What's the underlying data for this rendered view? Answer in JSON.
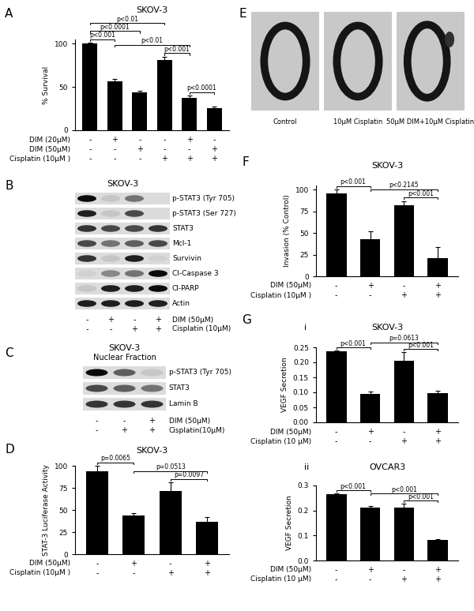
{
  "panel_labels": [
    "A",
    "B",
    "C",
    "D",
    "E",
    "F",
    "G"
  ],
  "chart_data": [
    {
      "type": "bar",
      "title": "SKOV-3",
      "y_label": "% Survival",
      "categories": [
        null,
        null,
        null,
        null,
        null,
        null
      ],
      "values": [
        100,
        57,
        44,
        81,
        37,
        26
      ],
      "errors": [
        1,
        2,
        2,
        4,
        3,
        1
      ],
      "color": "#000000",
      "ylim": [
        0,
        105
      ],
      "yticks": [
        0,
        50,
        100
      ],
      "treatments": [
        {
          "label": "DIM (20μM)",
          "marks": [
            "-",
            "+",
            "-",
            "-",
            "+",
            "-"
          ]
        },
        {
          "label": "DIM (50μM)",
          "marks": [
            "-",
            "-",
            "+",
            "-",
            "-",
            "+"
          ]
        },
        {
          "label": "Cisplatin (10μM )",
          "marks": [
            "-",
            "-",
            "-",
            "+",
            "+",
            "+"
          ]
        }
      ],
      "annotations": [
        {
          "text": "p<0.001",
          "from": 0,
          "to": 1
        },
        {
          "text": "p<0.0001",
          "from": 0,
          "to": 2
        },
        {
          "text": "p<0.001",
          "from": 3,
          "to": 4
        },
        {
          "text": "p<0.0001",
          "from": 4,
          "to": 5
        },
        {
          "text": "p<0.01",
          "from": 1,
          "to": 4
        },
        {
          "text": "p<0.01",
          "from": 0,
          "to": 3
        }
      ]
    },
    {
      "type": "bar",
      "title": "SKOV-3",
      "y_label": "STAT-3 Luciferase Activity",
      "categories": [
        null,
        null,
        null,
        null
      ],
      "values": [
        94,
        44,
        71,
        37
      ],
      "errors": [
        6,
        2,
        10,
        5
      ],
      "color": "#000000",
      "ylim": [
        0,
        100
      ],
      "yticks": [
        0,
        25,
        50,
        75,
        100
      ],
      "treatments": [
        {
          "label": "DIM (50μM)",
          "marks": [
            "-",
            "+",
            "-",
            "+"
          ]
        },
        {
          "label": "Cisplatin (10μM )",
          "marks": [
            "-",
            "-",
            "+",
            "+"
          ]
        }
      ],
      "annotations": [
        {
          "text": "p=0.0065",
          "from": 0,
          "to": 1
        },
        {
          "text": "p=0.0097",
          "from": 2,
          "to": 3
        },
        {
          "text": "p=0.0513",
          "from": 1,
          "to": 3
        }
      ]
    },
    {
      "type": "bar",
      "title": "SKOV-3",
      "y_label": "Invasion (% Control)",
      "categories": [
        null,
        null,
        null,
        null
      ],
      "values": [
        96,
        43,
        82,
        21
      ],
      "errors": [
        4,
        9,
        5,
        13
      ],
      "color": "#000000",
      "ylim": [
        0,
        105
      ],
      "yticks": [
        0,
        25,
        50,
        75,
        100
      ],
      "treatments": [
        {
          "label": "DIM (50μM)",
          "marks": [
            "-",
            "+",
            "-",
            "+"
          ]
        },
        {
          "label": "Cisplatin (10μM )",
          "marks": [
            "-",
            "-",
            "+",
            "+"
          ]
        }
      ],
      "annotations": [
        {
          "text": "p<0.001",
          "from": 0,
          "to": 1
        },
        {
          "text": "p<0.001",
          "from": 2,
          "to": 3
        },
        {
          "text": "p<0.2145",
          "from": 1,
          "to": 3
        }
      ]
    },
    {
      "type": "bar",
      "title": "SKOV-3",
      "subtitle": "i",
      "y_label": "VEGF Secretion",
      "categories": [
        null,
        null,
        null,
        null
      ],
      "values": [
        0.238,
        0.095,
        0.204,
        0.098
      ],
      "errors": [
        0.002,
        0.007,
        0.03,
        0.007
      ],
      "color": "#000000",
      "ylim": [
        0,
        0.25
      ],
      "yticks": [
        {
          "value": 0,
          "label": "0.00"
        },
        {
          "value": 0.05,
          "label": "0.05"
        },
        {
          "value": 0.1,
          "label": "0.10"
        },
        {
          "value": 0.15,
          "label": "0.15"
        },
        {
          "value": 0.2,
          "label": "0.20"
        },
        {
          "value": 0.25,
          "label": "0.25"
        }
      ],
      "treatments": [
        {
          "label": "DIM (50μM)",
          "marks": [
            "-",
            "+",
            "-",
            "+"
          ]
        },
        {
          "label": "Cisplatin (10 μM)",
          "marks": [
            "-",
            "-",
            "+",
            "+"
          ]
        }
      ],
      "annotations": [
        {
          "text": "p<0.001",
          "from": 0,
          "to": 1
        },
        {
          "text": "p<0.001",
          "from": 2,
          "to": 3
        },
        {
          "text": "p=0.0613",
          "from": 1,
          "to": 3
        }
      ]
    },
    {
      "type": "bar",
      "title": "OVCAR3",
      "subtitle": "ii",
      "y_label": "VEGF Secretion",
      "categories": [
        null,
        null,
        null,
        null
      ],
      "values": [
        0.265,
        0.212,
        0.213,
        0.082
      ],
      "errors": [
        0.003,
        0.005,
        0.015,
        0.002
      ],
      "color": "#000000",
      "ylim": [
        0,
        0.3
      ],
      "yticks": [
        {
          "value": 0,
          "label": "0.0"
        },
        0.1,
        0.2,
        0.3
      ],
      "treatments": [
        {
          "label": "DIM (50μM)",
          "marks": [
            "-",
            "+",
            "-",
            "+"
          ]
        },
        {
          "label": "Cisplatin (10 μM)",
          "marks": [
            "-",
            "-",
            "+",
            "+"
          ]
        }
      ],
      "annotations": [
        {
          "text": "p<0.001",
          "from": 0,
          "to": 1
        },
        {
          "text": "p<0.001",
          "from": 2,
          "to": 3
        },
        {
          "text": "p<0.001",
          "from": 1,
          "to": 3
        }
      ]
    }
  ],
  "blots": [
    {
      "title": "SKOV-3",
      "rows": [
        {
          "label": "p-STAT3 (Tyr 705)",
          "intensities": [
            1.0,
            0.1,
            0.5,
            0.0
          ]
        },
        {
          "label": "p-STAT3 (Ser 727)",
          "intensities": [
            0.9,
            0.1,
            0.7,
            0.0
          ]
        },
        {
          "label": "STAT3",
          "intensities": [
            0.8,
            0.7,
            0.7,
            0.8
          ]
        },
        {
          "label": "Mcl-1",
          "intensities": [
            0.7,
            0.5,
            0.6,
            0.7
          ]
        },
        {
          "label": "Survivin",
          "intensities": [
            0.8,
            0.1,
            0.9,
            0.05
          ]
        },
        {
          "label": "Cl-Caspase 3",
          "intensities": [
            0.05,
            0.4,
            0.5,
            1.0
          ]
        },
        {
          "label": "Cl-PARP",
          "intensities": [
            0.1,
            0.9,
            0.9,
            1.0
          ]
        },
        {
          "label": "Actin",
          "intensities": [
            0.9,
            0.9,
            0.9,
            0.9
          ]
        }
      ],
      "treatments": [
        {
          "label": "DIM (50μM)",
          "marks": [
            "-",
            "+",
            "-",
            "+"
          ]
        },
        {
          "label": "Cisplatin (10μM)",
          "marks": [
            "-",
            "-",
            "+",
            "+"
          ]
        }
      ]
    },
    {
      "title": "SKOV-3",
      "subtitle": "Nuclear Fraction",
      "rows": [
        {
          "label": "p-STAT3 (Tyr 705)",
          "intensities": [
            1.0,
            0.6,
            0.1
          ]
        },
        {
          "label": "STAT3",
          "intensities": [
            0.7,
            0.6,
            0.5
          ]
        },
        {
          "label": "Lamin B",
          "intensities": [
            0.8,
            0.8,
            0.8
          ]
        }
      ],
      "treatments": [
        {
          "label": "DIM (50μM)",
          "marks": [
            "-",
            "-",
            "+"
          ]
        },
        {
          "label": "Cisplatin(10μM)",
          "marks": [
            "-",
            "+",
            "+"
          ]
        }
      ]
    }
  ],
  "images": {
    "captions": [
      "Control",
      "10μM Cisplatin",
      "50μM DIM+10μM Cisplatin"
    ]
  }
}
